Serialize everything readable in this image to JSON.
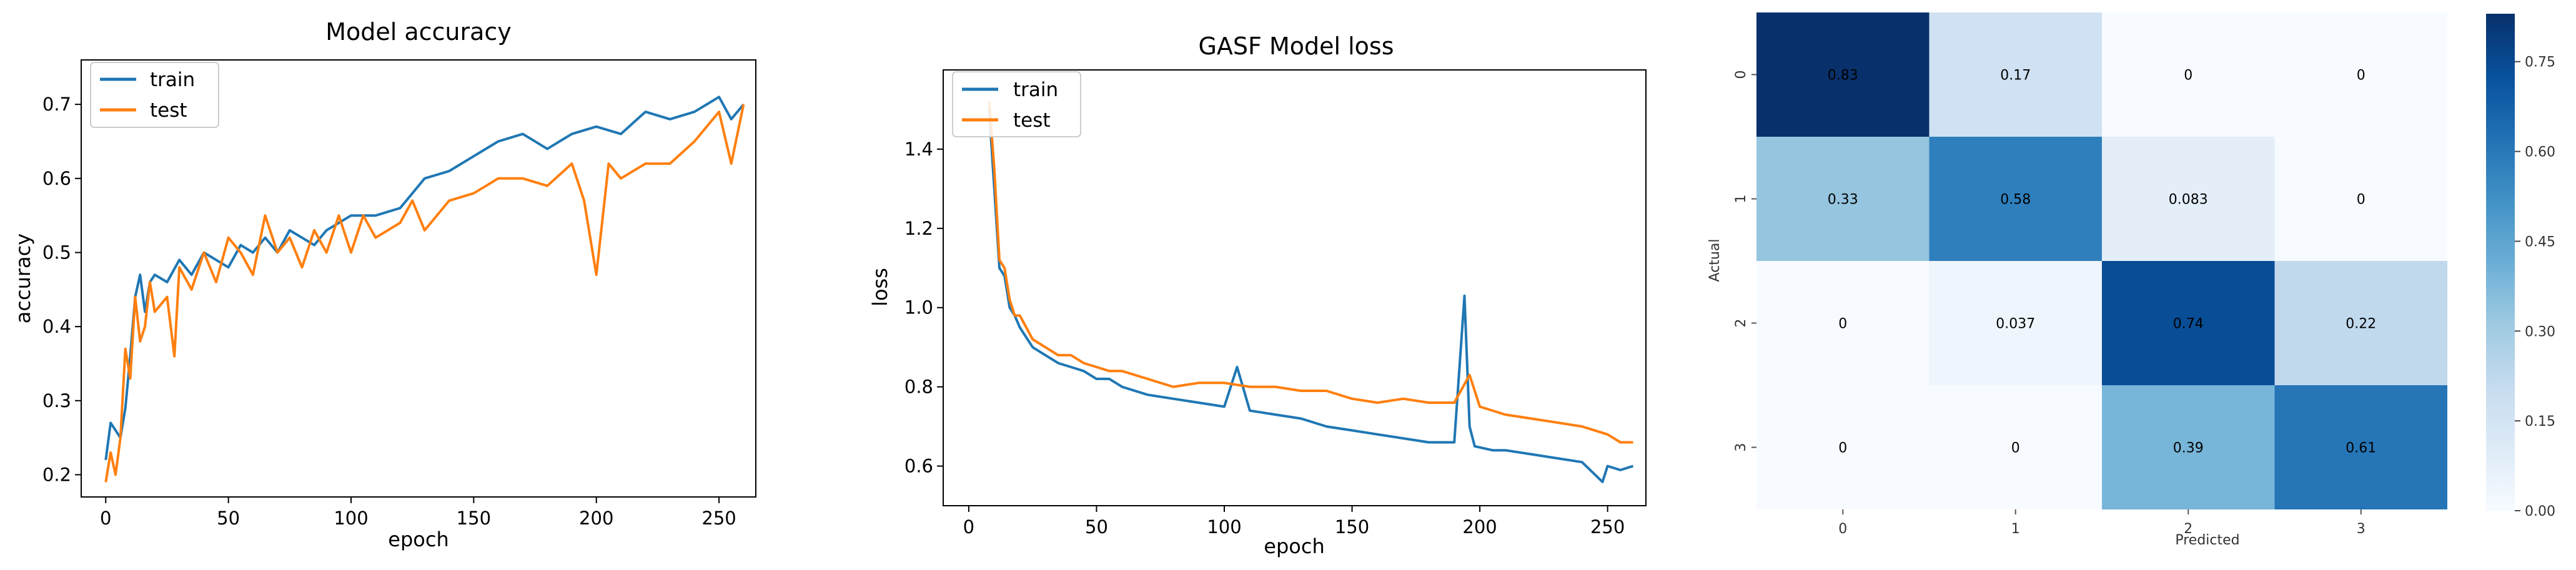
{
  "chart_data": [
    {
      "type": "line",
      "title": "Model accuracy",
      "xlabel": "epoch",
      "ylabel": "accuracy",
      "xlim": [
        -10,
        265
      ],
      "ylim": [
        0.17,
        0.76
      ],
      "xticks": [
        0,
        50,
        100,
        150,
        200,
        250
      ],
      "yticks": [
        0.2,
        0.3,
        0.4,
        0.5,
        0.6,
        0.7
      ],
      "xtick_labels": [
        "0",
        "50",
        "100",
        "150",
        "200",
        "250"
      ],
      "ytick_labels": [
        "0.2",
        "0.3",
        "0.4",
        "0.5",
        "0.6",
        "0.7"
      ],
      "legend_position": "top-left",
      "series": [
        {
          "name": "train",
          "color": "#1f77b4",
          "x": [
            0,
            2,
            4,
            6,
            8,
            10,
            12,
            14,
            16,
            18,
            20,
            25,
            30,
            35,
            40,
            45,
            50,
            55,
            60,
            65,
            70,
            75,
            80,
            85,
            90,
            95,
            100,
            110,
            120,
            125,
            130,
            140,
            150,
            160,
            170,
            180,
            190,
            200,
            210,
            220,
            230,
            240,
            250,
            255,
            260
          ],
          "y": [
            0.22,
            0.27,
            0.26,
            0.25,
            0.29,
            0.36,
            0.44,
            0.47,
            0.42,
            0.46,
            0.47,
            0.46,
            0.49,
            0.47,
            0.5,
            0.49,
            0.48,
            0.51,
            0.5,
            0.52,
            0.5,
            0.53,
            0.52,
            0.51,
            0.53,
            0.54,
            0.55,
            0.55,
            0.56,
            0.58,
            0.6,
            0.61,
            0.63,
            0.65,
            0.66,
            0.64,
            0.66,
            0.67,
            0.66,
            0.69,
            0.68,
            0.69,
            0.71,
            0.68,
            0.7
          ]
        },
        {
          "name": "test",
          "color": "#ff7f0e",
          "x": [
            0,
            2,
            4,
            6,
            8,
            10,
            12,
            14,
            16,
            18,
            20,
            25,
            28,
            30,
            35,
            40,
            45,
            50,
            55,
            60,
            65,
            70,
            75,
            80,
            85,
            90,
            95,
            100,
            105,
            110,
            120,
            125,
            130,
            140,
            150,
            160,
            170,
            180,
            190,
            195,
            200,
            205,
            210,
            220,
            230,
            240,
            250,
            255,
            260
          ],
          "y": [
            0.19,
            0.23,
            0.2,
            0.25,
            0.37,
            0.33,
            0.44,
            0.38,
            0.4,
            0.46,
            0.42,
            0.44,
            0.36,
            0.48,
            0.45,
            0.5,
            0.46,
            0.52,
            0.5,
            0.47,
            0.55,
            0.5,
            0.52,
            0.48,
            0.53,
            0.5,
            0.55,
            0.5,
            0.55,
            0.52,
            0.54,
            0.57,
            0.53,
            0.57,
            0.58,
            0.6,
            0.6,
            0.59,
            0.62,
            0.57,
            0.47,
            0.62,
            0.6,
            0.62,
            0.62,
            0.65,
            0.69,
            0.62,
            0.7
          ]
        }
      ]
    },
    {
      "type": "line",
      "title": "GASF Model loss",
      "xlabel": "epoch",
      "ylabel": "loss",
      "xlim": [
        -10,
        265
      ],
      "ylim": [
        0.5,
        1.6
      ],
      "xticks": [
        0,
        50,
        100,
        150,
        200,
        250
      ],
      "yticks": [
        0.6,
        0.8,
        1.0,
        1.2,
        1.4
      ],
      "xtick_labels": [
        "0",
        "50",
        "100",
        "150",
        "200",
        "250"
      ],
      "ytick_labels": [
        "0.6",
        "0.8",
        "1.0",
        "1.2",
        "1.4"
      ],
      "legend_position": "top-left",
      "series": [
        {
          "name": "train",
          "color": "#1f77b4",
          "x": [
            8,
            10,
            12,
            14,
            16,
            18,
            20,
            25,
            30,
            35,
            40,
            45,
            50,
            55,
            60,
            70,
            80,
            90,
            100,
            105,
            110,
            120,
            130,
            140,
            150,
            160,
            170,
            180,
            190,
            194,
            196,
            198,
            205,
            210,
            220,
            230,
            240,
            248,
            250,
            255,
            260
          ],
          "y": [
            1.5,
            1.3,
            1.1,
            1.08,
            1.0,
            0.98,
            0.95,
            0.9,
            0.88,
            0.86,
            0.85,
            0.84,
            0.82,
            0.82,
            0.8,
            0.78,
            0.77,
            0.76,
            0.75,
            0.85,
            0.74,
            0.73,
            0.72,
            0.7,
            0.69,
            0.68,
            0.67,
            0.66,
            0.66,
            1.03,
            0.7,
            0.65,
            0.64,
            0.64,
            0.63,
            0.62,
            0.61,
            0.56,
            0.6,
            0.59,
            0.6
          ]
        },
        {
          "name": "test",
          "color": "#ff7f0e",
          "x": [
            8,
            10,
            12,
            14,
            16,
            18,
            20,
            25,
            30,
            35,
            40,
            45,
            50,
            55,
            60,
            70,
            80,
            90,
            100,
            110,
            120,
            130,
            140,
            150,
            160,
            170,
            180,
            190,
            196,
            200,
            210,
            220,
            230,
            240,
            250,
            255,
            260
          ],
          "y": [
            1.52,
            1.35,
            1.12,
            1.1,
            1.02,
            0.98,
            0.98,
            0.92,
            0.9,
            0.88,
            0.88,
            0.86,
            0.85,
            0.84,
            0.84,
            0.82,
            0.8,
            0.81,
            0.81,
            0.8,
            0.8,
            0.79,
            0.79,
            0.77,
            0.76,
            0.77,
            0.76,
            0.76,
            0.83,
            0.75,
            0.73,
            0.72,
            0.71,
            0.7,
            0.68,
            0.66,
            0.66
          ]
        }
      ]
    },
    {
      "type": "heatmap",
      "title": "",
      "xlabel": "Predicted",
      "ylabel": "Actual",
      "x_categories": [
        "0",
        "1",
        "2",
        "3"
      ],
      "y_categories": [
        "0",
        "1",
        "2",
        "3"
      ],
      "values": [
        [
          0.83,
          0.17,
          0,
          0
        ],
        [
          0.33,
          0.58,
          0.083,
          0
        ],
        [
          0,
          0.037,
          0.74,
          0.22
        ],
        [
          0,
          0,
          0.39,
          0.61
        ]
      ],
      "value_labels": [
        [
          "0.83",
          "0.17",
          "0",
          "0"
        ],
        [
          "0.33",
          "0.58",
          "0.083",
          "0"
        ],
        [
          "0",
          "0.037",
          "0.74",
          "0.22"
        ],
        [
          "0",
          "0",
          "0.39",
          "0.61"
        ]
      ],
      "colormap": "Blues",
      "vmin": 0,
      "vmax": 0.83,
      "colorbar_ticks": [
        0.0,
        0.15,
        0.3,
        0.45,
        0.6,
        0.75
      ],
      "colorbar_labels": [
        "0.00",
        "0.15",
        "0.30",
        "0.45",
        "0.60",
        "0.75"
      ]
    }
  ]
}
